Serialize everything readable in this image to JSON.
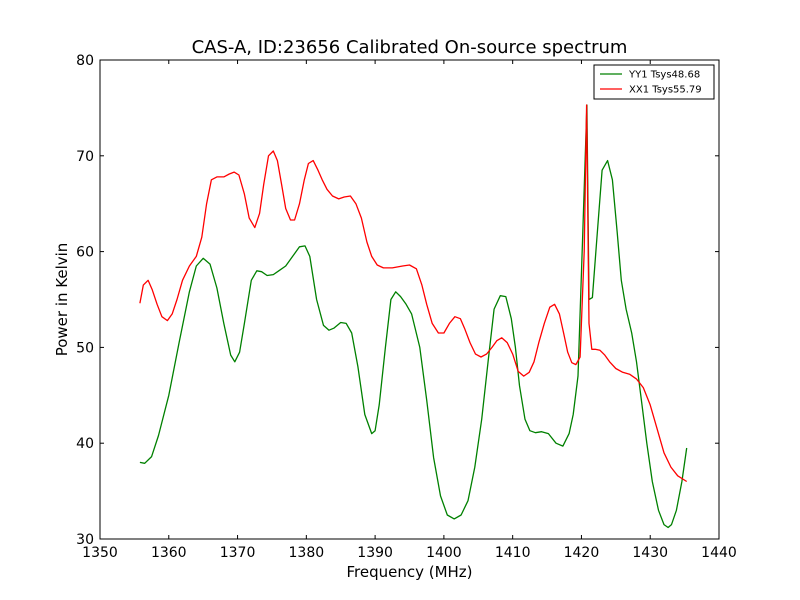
{
  "chart_data": {
    "type": "line",
    "title": "CAS-A, ID:23656 Calibrated On-source spectrum",
    "xlabel": "Frequency (MHz)",
    "ylabel": "Power in Kelvin",
    "xlim": [
      1350,
      1440
    ],
    "ylim": [
      30,
      80
    ],
    "xticks": [
      "1350",
      "1360",
      "1370",
      "1380",
      "1390",
      "1400",
      "1410",
      "1420",
      "1430",
      "1440"
    ],
    "yticks": [
      "30",
      "40",
      "50",
      "60",
      "70",
      "80"
    ],
    "grid": false,
    "legend_position": "top-right",
    "series": [
      {
        "name": "YY1 Tsys48.68",
        "color": "#008000",
        "x": [
          1355.8,
          1356.5,
          1357.5,
          1358.5,
          1360,
          1361.5,
          1363,
          1364,
          1365,
          1366,
          1367,
          1368,
          1369,
          1369.6,
          1370.3,
          1371,
          1372,
          1372.8,
          1373.5,
          1374.3,
          1375.2,
          1376,
          1377,
          1378,
          1379,
          1379.8,
          1380.5,
          1381.5,
          1382.5,
          1383.3,
          1384,
          1385,
          1385.8,
          1386.6,
          1387.5,
          1388.5,
          1389.5,
          1390,
          1390.6,
          1391.5,
          1392.3,
          1393,
          1393.7,
          1394.5,
          1395.3,
          1396.5,
          1397.5,
          1398.5,
          1399.5,
          1400.5,
          1401.5,
          1402.5,
          1403.5,
          1404.5,
          1405.5,
          1406.5,
          1407.3,
          1408.2,
          1409,
          1409.8,
          1410.4,
          1411,
          1411.8,
          1412.5,
          1413.3,
          1414.2,
          1415.2,
          1416.3,
          1417.3,
          1418.2,
          1418.8,
          1419.5,
          1420.2,
          1420.8,
          1421.1,
          1421.6,
          1422.2,
          1423,
          1423.8,
          1424.5,
          1425.2,
          1425.8,
          1426.5,
          1427.3,
          1428,
          1428.8,
          1429.5,
          1430.3,
          1431.2,
          1432,
          1432.6,
          1433.1,
          1433.8,
          1434.6,
          1435.3
        ],
        "values": [
          38.0,
          37.9,
          38.6,
          40.8,
          45.0,
          50.5,
          55.8,
          58.5,
          59.3,
          58.7,
          56.2,
          52.5,
          49.2,
          48.5,
          49.5,
          52.5,
          57.0,
          58.0,
          57.9,
          57.5,
          57.6,
          58.0,
          58.5,
          59.5,
          60.5,
          60.6,
          59.5,
          55.0,
          52.3,
          51.8,
          52.0,
          52.6,
          52.5,
          51.5,
          48.0,
          43.0,
          41.0,
          41.3,
          44.0,
          50.0,
          55.0,
          55.8,
          55.3,
          54.5,
          53.5,
          50.0,
          44.5,
          38.5,
          34.5,
          32.5,
          32.1,
          32.5,
          34.0,
          37.5,
          42.5,
          49.0,
          54.0,
          55.4,
          55.3,
          53.0,
          50.0,
          46.0,
          42.5,
          41.3,
          41.1,
          41.2,
          41.0,
          40.0,
          39.7,
          41.0,
          43.0,
          47.0,
          62.0,
          75.3,
          55.0,
          55.2,
          61.0,
          68.5,
          69.5,
          67.5,
          62.0,
          57.0,
          54.0,
          51.5,
          48.5,
          44.0,
          40.0,
          36.0,
          33.0,
          31.5,
          31.2,
          31.5,
          33.0,
          36.0,
          39.5
        ]
      },
      {
        "name": "XX1 Tsys55.79",
        "color": "#ff0000",
        "x": [
          1355.8,
          1356.3,
          1357,
          1357.6,
          1358.3,
          1359,
          1359.8,
          1360.5,
          1361.2,
          1362,
          1363,
          1364,
          1364.8,
          1365.5,
          1366.2,
          1367,
          1368,
          1368.8,
          1369.5,
          1370.2,
          1371,
          1371.7,
          1372.5,
          1373.2,
          1373.8,
          1374.5,
          1375.2,
          1375.8,
          1376.4,
          1377,
          1377.7,
          1378.3,
          1379,
          1379.7,
          1380.3,
          1381,
          1381.7,
          1382.3,
          1383,
          1383.8,
          1384.7,
          1385.5,
          1386.4,
          1387.2,
          1388,
          1388.8,
          1389.5,
          1390.3,
          1391.2,
          1392.5,
          1394,
          1395,
          1396,
          1396.8,
          1397.5,
          1398.3,
          1399.2,
          1400,
          1400.8,
          1401.6,
          1402.4,
          1403,
          1403.8,
          1404.6,
          1405.4,
          1406.2,
          1407,
          1407.7,
          1408.4,
          1409.2,
          1410,
          1410.8,
          1411.6,
          1412.4,
          1413.1,
          1413.8,
          1414.6,
          1415.4,
          1416.1,
          1416.8,
          1417.4,
          1418,
          1418.6,
          1419.2,
          1419.8,
          1420.4,
          1420.75,
          1421.1,
          1421.5,
          1422,
          1422.7,
          1423.4,
          1424.1,
          1425,
          1426,
          1427,
          1428,
          1429,
          1430,
          1431,
          1432,
          1433,
          1434,
          1435.3
        ],
        "values": [
          54.6,
          56.5,
          57.0,
          56.0,
          54.5,
          53.2,
          52.8,
          53.5,
          55.0,
          57.0,
          58.5,
          59.5,
          61.5,
          65.0,
          67.5,
          67.8,
          67.8,
          68.1,
          68.3,
          68.0,
          66.0,
          63.5,
          62.5,
          64.0,
          67.0,
          70.0,
          70.5,
          69.5,
          67.0,
          64.5,
          63.3,
          63.3,
          65.0,
          67.5,
          69.2,
          69.5,
          68.5,
          67.5,
          66.5,
          65.8,
          65.5,
          65.7,
          65.8,
          65.0,
          63.5,
          61.0,
          59.5,
          58.6,
          58.3,
          58.3,
          58.5,
          58.6,
          58.2,
          56.5,
          54.5,
          52.5,
          51.5,
          51.5,
          52.5,
          53.2,
          53.0,
          52.0,
          50.5,
          49.3,
          49.0,
          49.3,
          50.0,
          50.7,
          51.0,
          50.5,
          49.3,
          47.5,
          47.0,
          47.4,
          48.5,
          50.5,
          52.5,
          54.2,
          54.5,
          53.5,
          51.5,
          49.5,
          48.4,
          48.2,
          49.0,
          60.0,
          75.3,
          52.5,
          49.8,
          49.8,
          49.7,
          49.2,
          48.5,
          47.8,
          47.4,
          47.2,
          46.7,
          45.8,
          44.0,
          41.5,
          39.0,
          37.5,
          36.6,
          36.0
        ]
      }
    ]
  }
}
